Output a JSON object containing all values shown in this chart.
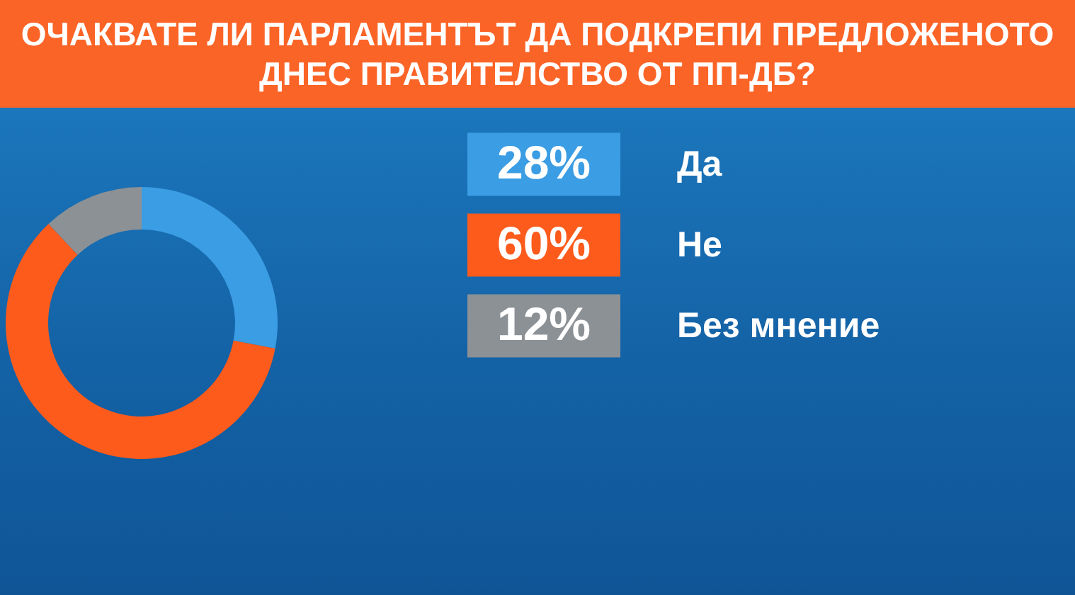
{
  "chart_data": {
    "type": "donut",
    "title": "ОЧАКВАТЕ ЛИ ПАРЛАМЕНТЪТ ДА ПОДКРЕПИ ПРЕДЛОЖЕНОТО ДНЕС ПРАВИТЕЛСТВО ОТ ПП-ДБ?",
    "categories": [
      "Да",
      "Не",
      "Без мнение"
    ],
    "values": [
      28,
      60,
      12
    ],
    "colors": [
      "#3b9de3",
      "#fc5b1c",
      "#8c9196"
    ],
    "value_labels": [
      "28%",
      "60%",
      "12%"
    ],
    "legend": "right"
  }
}
